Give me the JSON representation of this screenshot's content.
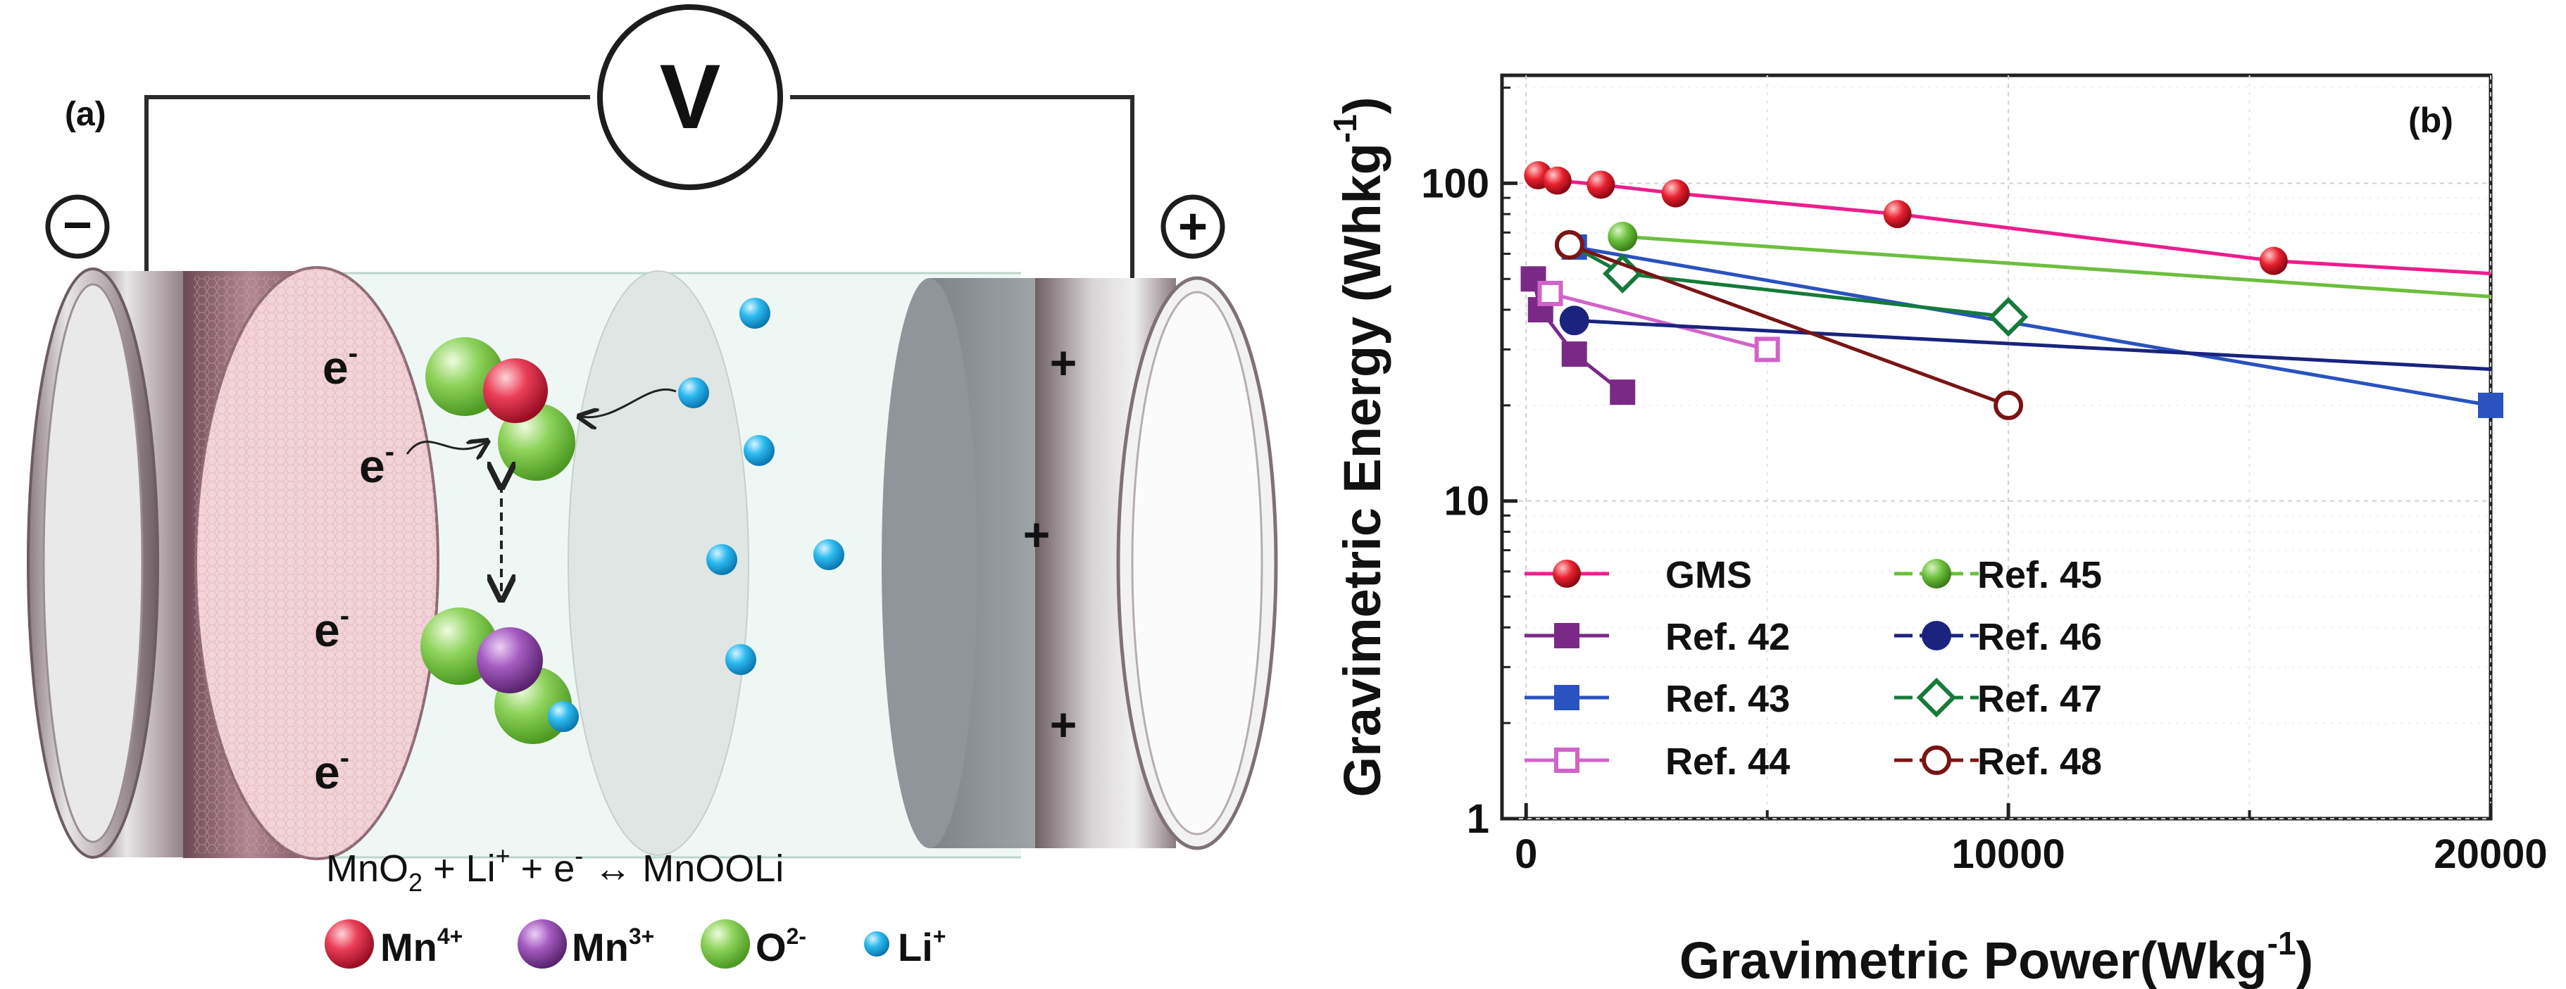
{
  "panel_a": {
    "label": "(a)",
    "voltmeter": "V",
    "minus": "−",
    "plus": "+",
    "electron": "e",
    "electron_sup": "-",
    "cathode_plus": "+",
    "equation": {
      "p1": "MnO",
      "p1_sub": "2",
      "p2": " + Li",
      "p2_sup": "+",
      "p3": " + e",
      "p3_sup": "-",
      "p4": " ↔ MnOOLi"
    },
    "legend": [
      {
        "label": "Mn",
        "sup": "4+",
        "color": "#e0314a"
      },
      {
        "label": "Mn",
        "sup": "3+",
        "color": "#9b4fb5"
      },
      {
        "label": "O",
        "sup": "2-",
        "color": "#7fcc4a"
      },
      {
        "label": "Li",
        "sup": "+",
        "color": "#1fb4ea"
      }
    ]
  },
  "chart_data": {
    "type": "line",
    "label": "(b)",
    "xlabel": "Gravimetric Power(Wkg",
    "xlabel_sup": "-1",
    "xlabel_end": ")",
    "ylabel": "Gravimetric Energy (Whkg",
    "ylabel_sup": "-1",
    "ylabel_end": ")",
    "xlim": [
      -500,
      20000
    ],
    "ylim_log10": [
      0,
      2.34
    ],
    "xticks": [
      0,
      10000,
      20000
    ],
    "xtick_labels": [
      "0",
      "10000",
      "20000"
    ],
    "yticks": [
      1,
      10,
      100
    ],
    "ytick_labels": [
      "1",
      "10",
      "100"
    ],
    "series": [
      {
        "name": "GMS",
        "color": "#ee1d8c",
        "marker_color": "#e11d2f",
        "marker": "sphere",
        "points": [
          [
            250,
            106
          ],
          [
            650,
            102
          ],
          [
            1550,
            99
          ],
          [
            3100,
            93
          ],
          [
            7700,
            80
          ],
          [
            15500,
            57
          ],
          [
            20000,
            52
          ]
        ],
        "marker_indices": [
          0,
          1,
          2,
          3,
          4,
          5
        ]
      },
      {
        "name": "Ref. 42",
        "color": "#7a2a86",
        "marker_color": "#7a2a86",
        "marker": "square",
        "points": [
          [
            150,
            50
          ],
          [
            300,
            40
          ],
          [
            1000,
            29
          ],
          [
            2000,
            22
          ]
        ],
        "marker_indices": [
          0,
          1,
          2,
          3
        ]
      },
      {
        "name": "Ref. 43",
        "color": "#2a52c0",
        "marker_color": "#2a52c0",
        "marker": "square",
        "points": [
          [
            1000,
            63
          ],
          [
            20000,
            20
          ]
        ],
        "marker_indices": [
          0,
          1
        ]
      },
      {
        "name": "Ref. 44",
        "color": "#d163c9",
        "marker_color": "#d163c9",
        "marker": "square-open",
        "points": [
          [
            500,
            45
          ],
          [
            5000,
            30
          ]
        ],
        "marker_indices": [
          0,
          1
        ]
      },
      {
        "name": "Ref. 45",
        "color": "#6cbf3c",
        "marker_color": "#6cbf3c",
        "marker": "circle",
        "points": [
          [
            2000,
            68
          ],
          [
            20000,
            44
          ]
        ],
        "marker_indices": [
          0
        ]
      },
      {
        "name": "Ref. 46",
        "color": "#1a237e",
        "marker_color": "#1a237e",
        "marker": "circle",
        "points": [
          [
            1000,
            37
          ],
          [
            20000,
            26
          ]
        ],
        "marker_indices": [
          0
        ]
      },
      {
        "name": "Ref. 47",
        "color": "#157a3a",
        "marker_color": "#157a3a",
        "marker": "diamond-open",
        "points": [
          [
            1000,
            63
          ],
          [
            2000,
            52
          ],
          [
            10000,
            38
          ]
        ],
        "marker_indices": [
          1,
          2
        ]
      },
      {
        "name": "Ref. 48",
        "color": "#7a1414",
        "marker_color": "#7a1414",
        "marker": "circle-open",
        "points": [
          [
            900,
            64
          ],
          [
            10000,
            20
          ]
        ],
        "marker_indices": [
          0,
          1
        ]
      }
    ]
  }
}
